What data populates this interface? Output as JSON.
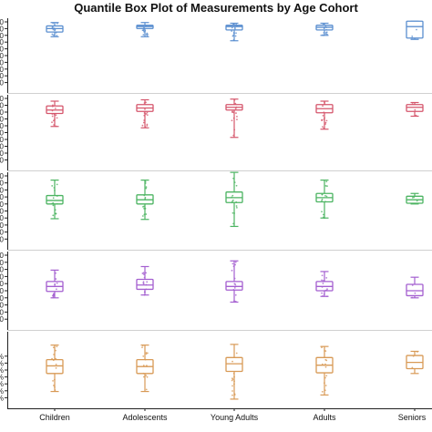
{
  "chart_data": {
    "type": "box",
    "title": "Quantile Box Plot of Measurements by Age Cohort",
    "categories": [
      "Children",
      "Adolescents",
      "Young Adults",
      "Adults",
      "Seniors"
    ],
    "grid": false,
    "panels": [
      {
        "name": "",
        "color": "#5b8fd0",
        "ylim": [
          0,
          10
        ],
        "tick_values": [
          1,
          2,
          3,
          4,
          5,
          6,
          7,
          8,
          9,
          10
        ],
        "tick_labels": [
          "0",
          "0",
          "0",
          "0",
          "0",
          "0",
          "0",
          "0",
          "0",
          "0"
        ],
        "boxes": [
          {
            "whisker_low": 7.8,
            "q1": 8.5,
            "median": 9.0,
            "q3": 9.4,
            "whisker_high": 9.9
          },
          {
            "whisker_low": 7.8,
            "q1": 9.0,
            "median": 9.3,
            "q3": 9.5,
            "whisker_high": 9.9
          },
          {
            "whisker_low": 7.2,
            "q1": 8.8,
            "median": 9.3,
            "q3": 9.5,
            "whisker_high": 9.8
          },
          {
            "whisker_low": 8.0,
            "q1": 8.8,
            "median": 9.2,
            "q3": 9.5,
            "whisker_high": 9.8
          },
          {
            "whisker_low": 7.4,
            "q1": 7.6,
            "median": 9.3,
            "q3": 10.1,
            "whisker_high": 10.1
          }
        ]
      },
      {
        "name": "",
        "color": "#d5566c",
        "ylim": [
          0,
          10
        ],
        "tick_values": [
          1,
          2,
          3,
          4,
          5,
          6,
          7,
          8,
          9,
          10
        ],
        "tick_labels": [
          "0",
          "0",
          "0",
          "0",
          "0",
          "0",
          "0",
          "0",
          "0",
          "0"
        ],
        "boxes": [
          {
            "whisker_low": 5.9,
            "q1": 7.8,
            "median": 8.3,
            "q3": 8.9,
            "whisker_high": 9.6
          },
          {
            "whisker_low": 5.7,
            "q1": 8.1,
            "median": 8.6,
            "q3": 9.1,
            "whisker_high": 9.8
          },
          {
            "whisker_low": 4.3,
            "q1": 8.3,
            "median": 8.7,
            "q3": 9.1,
            "whisker_high": 9.9
          },
          {
            "whisker_low": 5.5,
            "q1": 7.9,
            "median": 8.5,
            "q3": 9.1,
            "whisker_high": 9.6
          },
          {
            "whisker_low": 7.4,
            "q1": 8.1,
            "median": 8.7,
            "q3": 9.1,
            "whisker_high": 9.4
          }
        ]
      },
      {
        "name": "",
        "color": "#4cb462",
        "ylim": [
          0,
          10
        ],
        "tick_values": [
          1,
          2,
          3,
          4,
          5,
          6,
          7,
          8,
          9,
          10
        ],
        "tick_labels": [
          "0",
          "0",
          "0",
          "0",
          "0",
          "0",
          "0",
          "0",
          "0",
          "0"
        ],
        "boxes": [
          {
            "whisker_low": 3.9,
            "q1": 6.0,
            "median": 6.5,
            "q3": 7.2,
            "whisker_high": 9.4
          },
          {
            "whisker_low": 3.8,
            "q1": 6.0,
            "median": 6.6,
            "q3": 7.3,
            "whisker_high": 9.4
          },
          {
            "whisker_low": 2.8,
            "q1": 6.2,
            "median": 6.9,
            "q3": 7.7,
            "whisker_high": 10.5
          },
          {
            "whisker_low": 4.0,
            "q1": 6.3,
            "median": 6.9,
            "q3": 7.5,
            "whisker_high": 9.4
          },
          {
            "whisker_low": 6.0,
            "q1": 6.1,
            "median": 6.6,
            "q3": 7.1,
            "whisker_high": 7.5
          }
        ]
      },
      {
        "name": "",
        "color": "#a45fd0",
        "ylim": [
          0,
          10
        ],
        "tick_values": [
          1,
          2,
          3,
          4,
          5,
          6,
          7,
          8,
          9,
          10
        ],
        "tick_labels": [
          "0",
          "0",
          "0",
          "0",
          "0",
          "0",
          "0",
          "0",
          "0",
          "0"
        ],
        "boxes": [
          {
            "whisker_low": 4.0,
            "q1": 4.9,
            "median": 5.6,
            "q3": 6.3,
            "whisker_high": 7.9
          },
          {
            "whisker_low": 4.4,
            "q1": 5.2,
            "median": 5.8,
            "q3": 6.6,
            "whisker_high": 8.4
          },
          {
            "whisker_low": 3.4,
            "q1": 5.1,
            "median": 5.6,
            "q3": 6.3,
            "whisker_high": 9.2
          },
          {
            "whisker_low": 4.2,
            "q1": 5.0,
            "median": 5.6,
            "q3": 6.3,
            "whisker_high": 7.7
          },
          {
            "whisker_low": 4.0,
            "q1": 4.3,
            "median": 5.0,
            "q3": 5.9,
            "whisker_high": 6.9
          }
        ]
      },
      {
        "name": "",
        "color": "#d89a56",
        "ylim": [
          0,
          10
        ],
        "tick_values": [
          1,
          2,
          3,
          4,
          5,
          6,
          7
        ],
        "tick_labels": [
          "%",
          "%",
          "%",
          "%",
          "%",
          "%",
          "%"
        ],
        "boxes": [
          {
            "whisker_low": 1.9,
            "q1": 4.5,
            "median": 5.6,
            "q3": 6.5,
            "whisker_high": 8.6
          },
          {
            "whisker_low": 1.9,
            "q1": 4.5,
            "median": 5.5,
            "q3": 6.5,
            "whisker_high": 8.6
          },
          {
            "whisker_low": 0.8,
            "q1": 4.8,
            "median": 5.9,
            "q3": 6.8,
            "whisker_high": 8.7
          },
          {
            "whisker_low": 1.4,
            "q1": 4.6,
            "median": 5.7,
            "q3": 6.8,
            "whisker_high": 8.4
          },
          {
            "whisker_low": 4.5,
            "q1": 5.2,
            "median": 6.1,
            "q3": 7.1,
            "whisker_high": 7.7
          }
        ]
      }
    ]
  }
}
